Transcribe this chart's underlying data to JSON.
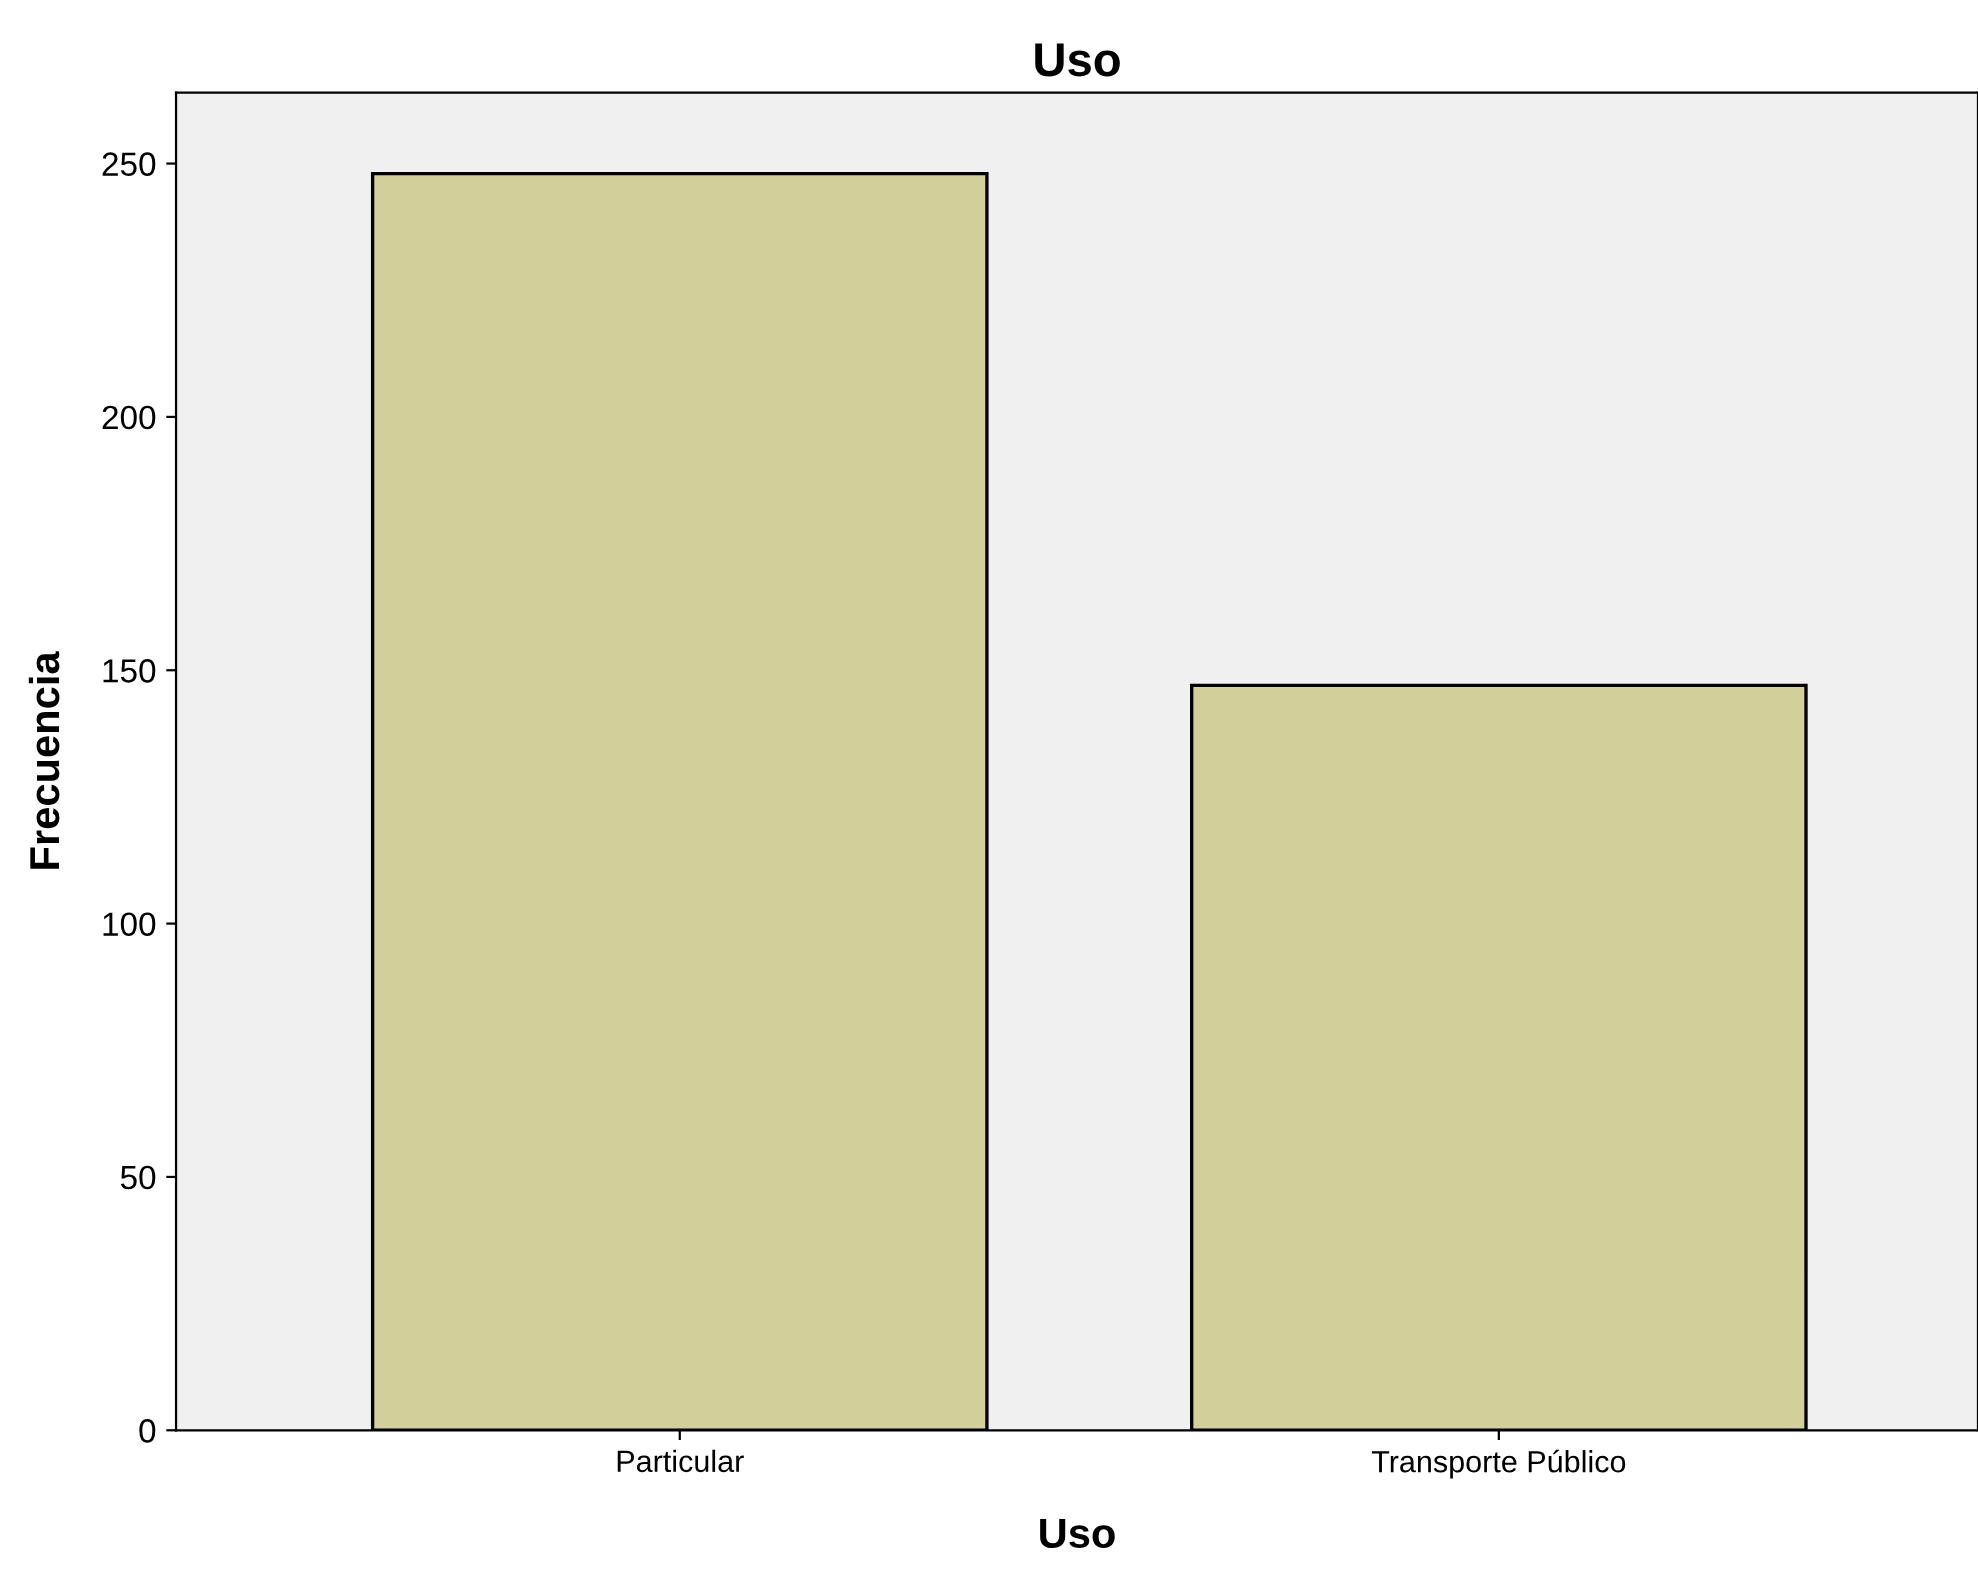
{
  "chart_data": {
    "type": "bar",
    "title": "Uso",
    "xlabel": "Uso",
    "ylabel": "Frecuencia",
    "categories": [
      "Particular",
      "Transporte Público"
    ],
    "values": [
      248,
      147
    ],
    "color": "#d3cf9a",
    "ylim": [
      0,
      264
    ],
    "yticks": [
      0,
      50,
      100,
      150,
      200,
      250
    ],
    "grid": false,
    "legend": false
  }
}
